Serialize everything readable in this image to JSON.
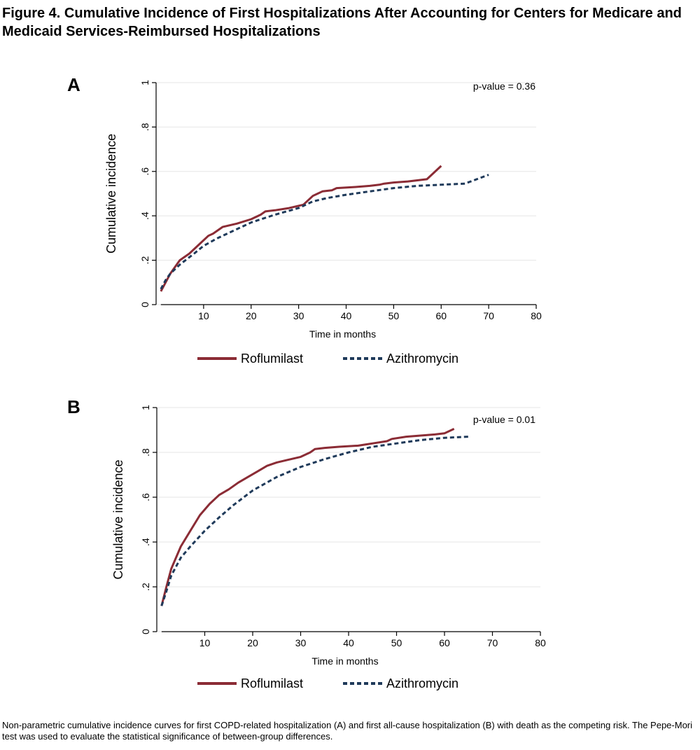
{
  "figure": {
    "title": "Figure 4. Cumulative Incidence of First Hospitalizations After Accounting for Centers for Medicare and Medicaid Services-Reimbursed Hospitalizations",
    "caption": "Non-parametric cumulative incidence curves for first COPD-related hospitalization (A) and first all-cause hospitalization (B) with death as the competing risk. The Pepe-Mori test was used to evaluate the statistical significance of between-group differences."
  },
  "colors": {
    "roflumilast": "#8b2c35",
    "azithromycin": "#1f3a5a",
    "grid": "#e6e6e6",
    "axis": "#000000"
  },
  "chart_data": [
    {
      "type": "line",
      "panel_label": "A",
      "annotation": "p-value = 0.36",
      "xlabel": "Time in months",
      "ylabel": "Cumulative incidence",
      "xlim": [
        0,
        80
      ],
      "ylim": [
        0,
        1
      ],
      "x_ticks": [
        {
          "value": 10,
          "label": "10"
        },
        {
          "value": 20,
          "label": "20"
        },
        {
          "value": 30,
          "label": "30"
        },
        {
          "value": 40,
          "label": "40"
        },
        {
          "value": 50,
          "label": "50"
        },
        {
          "value": 60,
          "label": "60"
        },
        {
          "value": 70,
          "label": "70"
        },
        {
          "value": 80,
          "label": "80"
        }
      ],
      "y_ticks": [
        {
          "value": 0,
          "label": "0"
        },
        {
          "value": 0.2,
          "label": ".2"
        },
        {
          "value": 0.4,
          "label": ".4"
        },
        {
          "value": 0.6,
          "label": ".6"
        },
        {
          "value": 0.8,
          "label": ".8"
        },
        {
          "value": 1,
          "label": "1"
        }
      ],
      "grid": true,
      "legend": "bottom",
      "series": [
        {
          "name": "Roflumilast",
          "style": "solid",
          "x": [
            1,
            2,
            3,
            5,
            7,
            9,
            11,
            12,
            14,
            17,
            20,
            22,
            23,
            25,
            28,
            31,
            33,
            34,
            35,
            37,
            38,
            42,
            45,
            47,
            48,
            50,
            53,
            57,
            60
          ],
          "y": [
            0.06,
            0.1,
            0.14,
            0.2,
            0.23,
            0.27,
            0.31,
            0.32,
            0.35,
            0.365,
            0.385,
            0.405,
            0.42,
            0.425,
            0.435,
            0.45,
            0.49,
            0.5,
            0.51,
            0.515,
            0.525,
            0.53,
            0.535,
            0.54,
            0.545,
            0.55,
            0.555,
            0.565,
            0.625
          ]
        },
        {
          "name": "Azithromycin",
          "style": "dashed",
          "x": [
            1,
            2,
            3,
            5,
            8,
            10,
            13,
            16,
            20,
            25,
            30,
            33,
            36,
            40,
            45,
            50,
            55,
            60,
            65,
            70
          ],
          "y": [
            0.07,
            0.11,
            0.14,
            0.18,
            0.23,
            0.265,
            0.3,
            0.33,
            0.37,
            0.405,
            0.435,
            0.465,
            0.48,
            0.495,
            0.51,
            0.525,
            0.535,
            0.54,
            0.545,
            0.585
          ]
        }
      ]
    },
    {
      "type": "line",
      "panel_label": "B",
      "annotation": "p-value = 0.01",
      "xlabel": "Time in months",
      "ylabel": "Cumulative incidence",
      "xlim": [
        0,
        80
      ],
      "ylim": [
        0,
        1
      ],
      "x_ticks": [
        {
          "value": 10,
          "label": "10"
        },
        {
          "value": 20,
          "label": "20"
        },
        {
          "value": 30,
          "label": "30"
        },
        {
          "value": 40,
          "label": "40"
        },
        {
          "value": 50,
          "label": "50"
        },
        {
          "value": 60,
          "label": "60"
        },
        {
          "value": 70,
          "label": "70"
        },
        {
          "value": 80,
          "label": "80"
        }
      ],
      "y_ticks": [
        {
          "value": 0,
          "label": "0"
        },
        {
          "value": 0.2,
          "label": ".2"
        },
        {
          "value": 0.4,
          "label": ".4"
        },
        {
          "value": 0.6,
          "label": ".6"
        },
        {
          "value": 0.8,
          "label": ".8"
        },
        {
          "value": 1,
          "label": "1"
        }
      ],
      "grid": true,
      "legend": "bottom",
      "series": [
        {
          "name": "Roflumilast",
          "style": "solid",
          "x": [
            1,
            2,
            3,
            5,
            7,
            9,
            11,
            13,
            15,
            17,
            19,
            21,
            23,
            25,
            27,
            30,
            32,
            33,
            35,
            38,
            42,
            45,
            48,
            49,
            52,
            55,
            58,
            60,
            62
          ],
          "y": [
            0.115,
            0.2,
            0.28,
            0.38,
            0.45,
            0.52,
            0.57,
            0.61,
            0.635,
            0.665,
            0.69,
            0.715,
            0.74,
            0.755,
            0.765,
            0.78,
            0.8,
            0.815,
            0.82,
            0.825,
            0.83,
            0.84,
            0.85,
            0.86,
            0.87,
            0.875,
            0.88,
            0.885,
            0.905
          ]
        },
        {
          "name": "Azithromycin",
          "style": "dashed",
          "x": [
            1,
            2,
            3,
            5,
            7,
            10,
            13,
            16,
            20,
            25,
            30,
            35,
            40,
            45,
            50,
            55,
            60,
            65
          ],
          "y": [
            0.115,
            0.18,
            0.25,
            0.33,
            0.38,
            0.45,
            0.51,
            0.565,
            0.63,
            0.69,
            0.735,
            0.77,
            0.8,
            0.825,
            0.84,
            0.855,
            0.865,
            0.87
          ]
        }
      ]
    }
  ]
}
